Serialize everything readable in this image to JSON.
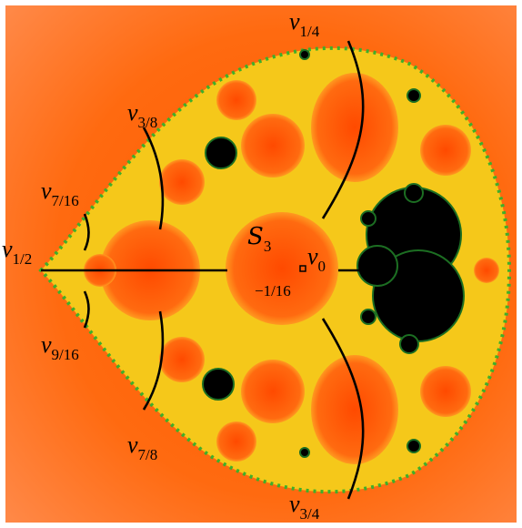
{
  "figure": {
    "labels": [
      {
        "symbol": "ν",
        "sub": "1/4"
      },
      {
        "symbol": "ν",
        "sub": "3/8"
      },
      {
        "symbol": "ν",
        "sub": "7/16"
      },
      {
        "symbol": "ν",
        "sub": "1/2"
      },
      {
        "symbol": "ν",
        "sub": "0"
      },
      {
        "symbol": "ν",
        "sub": "9/16"
      },
      {
        "symbol": "ν",
        "sub": "7/8"
      },
      {
        "symbol": "ν",
        "sub": "3/4"
      }
    ],
    "set_label": {
      "symbol": "S",
      "sub": "3"
    },
    "point_label": "−1/16"
  }
}
